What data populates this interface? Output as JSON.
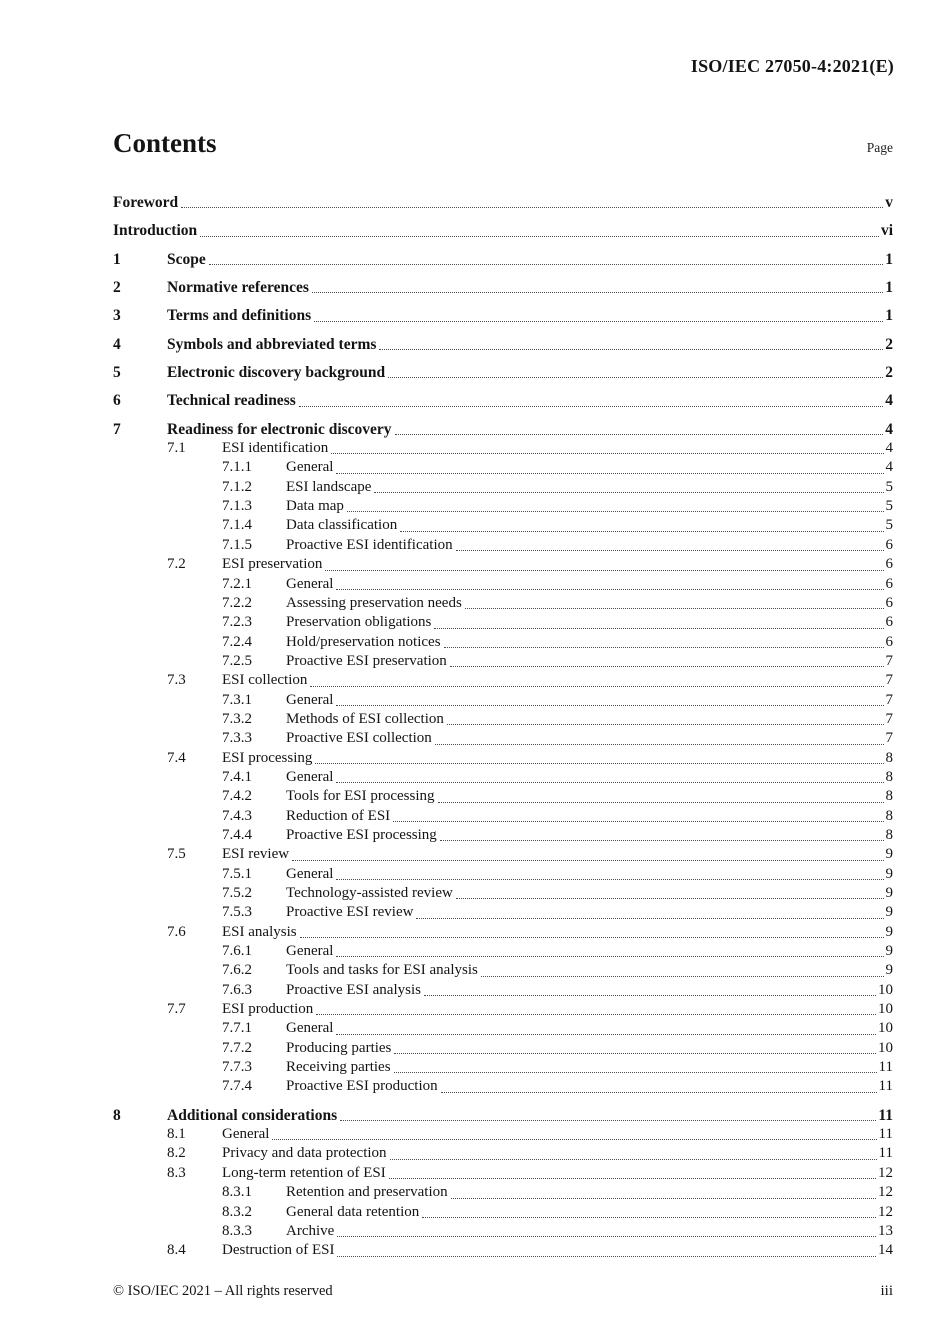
{
  "page": {
    "header_ref": "ISO/IEC 27050-4:2021(E)",
    "title": "Contents",
    "page_label": "Page",
    "footer_left": "© ISO/IEC 2021 – All rights reserved",
    "footer_right": "iii"
  },
  "toc": {
    "entries": [
      {
        "num": "",
        "title": "Foreword",
        "page": "v",
        "level": 0,
        "bold": true,
        "spaced": true
      },
      {
        "num": "",
        "title": "Introduction",
        "page": "vi",
        "level": 0,
        "bold": true,
        "spaced": true
      },
      {
        "num": "1",
        "title": "Scope",
        "page": "1",
        "level": 0,
        "bold": true,
        "spaced": true
      },
      {
        "num": "2",
        "title": "Normative references",
        "page": "1",
        "level": 0,
        "bold": true,
        "spaced": true
      },
      {
        "num": "3",
        "title": "Terms and definitions",
        "page": "1",
        "level": 0,
        "bold": true,
        "spaced": true
      },
      {
        "num": "4",
        "title": "Symbols and abbreviated terms",
        "page": "2",
        "level": 0,
        "bold": true,
        "spaced": true
      },
      {
        "num": "5",
        "title": "Electronic discovery background",
        "page": "2",
        "level": 0,
        "bold": true,
        "spaced": true
      },
      {
        "num": "6",
        "title": "Technical readiness",
        "page": "4",
        "level": 0,
        "bold": true,
        "spaced": true
      },
      {
        "num": "7",
        "title": "Readiness for electronic discovery",
        "page": "4",
        "level": 0,
        "bold": true,
        "spaced": true
      },
      {
        "num": "7.1",
        "title": "ESI identification",
        "page": "4",
        "level": 1,
        "bold": false,
        "spaced": false
      },
      {
        "num": "7.1.1",
        "title": "General",
        "page": "4",
        "level": 2,
        "bold": false,
        "spaced": false
      },
      {
        "num": "7.1.2",
        "title": "ESI landscape",
        "page": "5",
        "level": 2,
        "bold": false,
        "spaced": false
      },
      {
        "num": "7.1.3",
        "title": "Data map",
        "page": "5",
        "level": 2,
        "bold": false,
        "spaced": false
      },
      {
        "num": "7.1.4",
        "title": "Data classification",
        "page": "5",
        "level": 2,
        "bold": false,
        "spaced": false
      },
      {
        "num": "7.1.5",
        "title": "Proactive ESI identification",
        "page": "6",
        "level": 2,
        "bold": false,
        "spaced": false
      },
      {
        "num": "7.2",
        "title": "ESI preservation",
        "page": "6",
        "level": 1,
        "bold": false,
        "spaced": false
      },
      {
        "num": "7.2.1",
        "title": "General",
        "page": "6",
        "level": 2,
        "bold": false,
        "spaced": false
      },
      {
        "num": "7.2.2",
        "title": "Assessing preservation needs",
        "page": "6",
        "level": 2,
        "bold": false,
        "spaced": false
      },
      {
        "num": "7.2.3",
        "title": "Preservation obligations",
        "page": "6",
        "level": 2,
        "bold": false,
        "spaced": false
      },
      {
        "num": "7.2.4",
        "title": "Hold/preservation notices",
        "page": "6",
        "level": 2,
        "bold": false,
        "spaced": false
      },
      {
        "num": "7.2.5",
        "title": "Proactive ESI preservation",
        "page": "7",
        "level": 2,
        "bold": false,
        "spaced": false
      },
      {
        "num": "7.3",
        "title": "ESI collection",
        "page": "7",
        "level": 1,
        "bold": false,
        "spaced": false
      },
      {
        "num": "7.3.1",
        "title": "General",
        "page": "7",
        "level": 2,
        "bold": false,
        "spaced": false
      },
      {
        "num": "7.3.2",
        "title": "Methods of ESI collection",
        "page": "7",
        "level": 2,
        "bold": false,
        "spaced": false
      },
      {
        "num": "7.3.3",
        "title": "Proactive ESI collection",
        "page": "7",
        "level": 2,
        "bold": false,
        "spaced": false
      },
      {
        "num": "7.4",
        "title": "ESI processing",
        "page": "8",
        "level": 1,
        "bold": false,
        "spaced": false
      },
      {
        "num": "7.4.1",
        "title": "General",
        "page": "8",
        "level": 2,
        "bold": false,
        "spaced": false
      },
      {
        "num": "7.4.2",
        "title": "Tools for ESI processing",
        "page": "8",
        "level": 2,
        "bold": false,
        "spaced": false
      },
      {
        "num": "7.4.3",
        "title": "Reduction of ESI",
        "page": "8",
        "level": 2,
        "bold": false,
        "spaced": false
      },
      {
        "num": "7.4.4",
        "title": "Proactive ESI processing",
        "page": "8",
        "level": 2,
        "bold": false,
        "spaced": false
      },
      {
        "num": "7.5",
        "title": "ESI review",
        "page": "9",
        "level": 1,
        "bold": false,
        "spaced": false
      },
      {
        "num": "7.5.1",
        "title": "General",
        "page": "9",
        "level": 2,
        "bold": false,
        "spaced": false
      },
      {
        "num": "7.5.2",
        "title": "Technology-assisted review",
        "page": "9",
        "level": 2,
        "bold": false,
        "spaced": false
      },
      {
        "num": "7.5.3",
        "title": "Proactive ESI review",
        "page": "9",
        "level": 2,
        "bold": false,
        "spaced": false
      },
      {
        "num": "7.6",
        "title": "ESI analysis",
        "page": "9",
        "level": 1,
        "bold": false,
        "spaced": false
      },
      {
        "num": "7.6.1",
        "title": "General",
        "page": "9",
        "level": 2,
        "bold": false,
        "spaced": false
      },
      {
        "num": "7.6.2",
        "title": "Tools and tasks for ESI analysis",
        "page": "9",
        "level": 2,
        "bold": false,
        "spaced": false
      },
      {
        "num": "7.6.3",
        "title": "Proactive ESI analysis",
        "page": "10",
        "level": 2,
        "bold": false,
        "spaced": false
      },
      {
        "num": "7.7",
        "title": "ESI production",
        "page": "10",
        "level": 1,
        "bold": false,
        "spaced": false
      },
      {
        "num": "7.7.1",
        "title": "General",
        "page": "10",
        "level": 2,
        "bold": false,
        "spaced": false
      },
      {
        "num": "7.7.2",
        "title": "Producing parties",
        "page": "10",
        "level": 2,
        "bold": false,
        "spaced": false
      },
      {
        "num": "7.7.3",
        "title": "Receiving parties",
        "page": "11",
        "level": 2,
        "bold": false,
        "spaced": false
      },
      {
        "num": "7.7.4",
        "title": "Proactive ESI production",
        "page": "11",
        "level": 2,
        "bold": false,
        "spaced": false
      },
      {
        "num": "8",
        "title": "Additional considerations",
        "page": "11",
        "level": 0,
        "bold": true,
        "spaced": true
      },
      {
        "num": "8.1",
        "title": "General",
        "page": "11",
        "level": 1,
        "bold": false,
        "spaced": false
      },
      {
        "num": "8.2",
        "title": "Privacy and data protection",
        "page": "11",
        "level": 1,
        "bold": false,
        "spaced": false
      },
      {
        "num": "8.3",
        "title": "Long-term retention of ESI",
        "page": "12",
        "level": 1,
        "bold": false,
        "spaced": false
      },
      {
        "num": "8.3.1",
        "title": "Retention and preservation",
        "page": "12",
        "level": 2,
        "bold": false,
        "spaced": false
      },
      {
        "num": "8.3.2",
        "title": "General data retention",
        "page": "12",
        "level": 2,
        "bold": false,
        "spaced": false
      },
      {
        "num": "8.3.3",
        "title": "Archive",
        "page": "13",
        "level": 2,
        "bold": false,
        "spaced": false
      },
      {
        "num": "8.4",
        "title": "Destruction of ESI",
        "page": "14",
        "level": 1,
        "bold": false,
        "spaced": false
      }
    ]
  }
}
